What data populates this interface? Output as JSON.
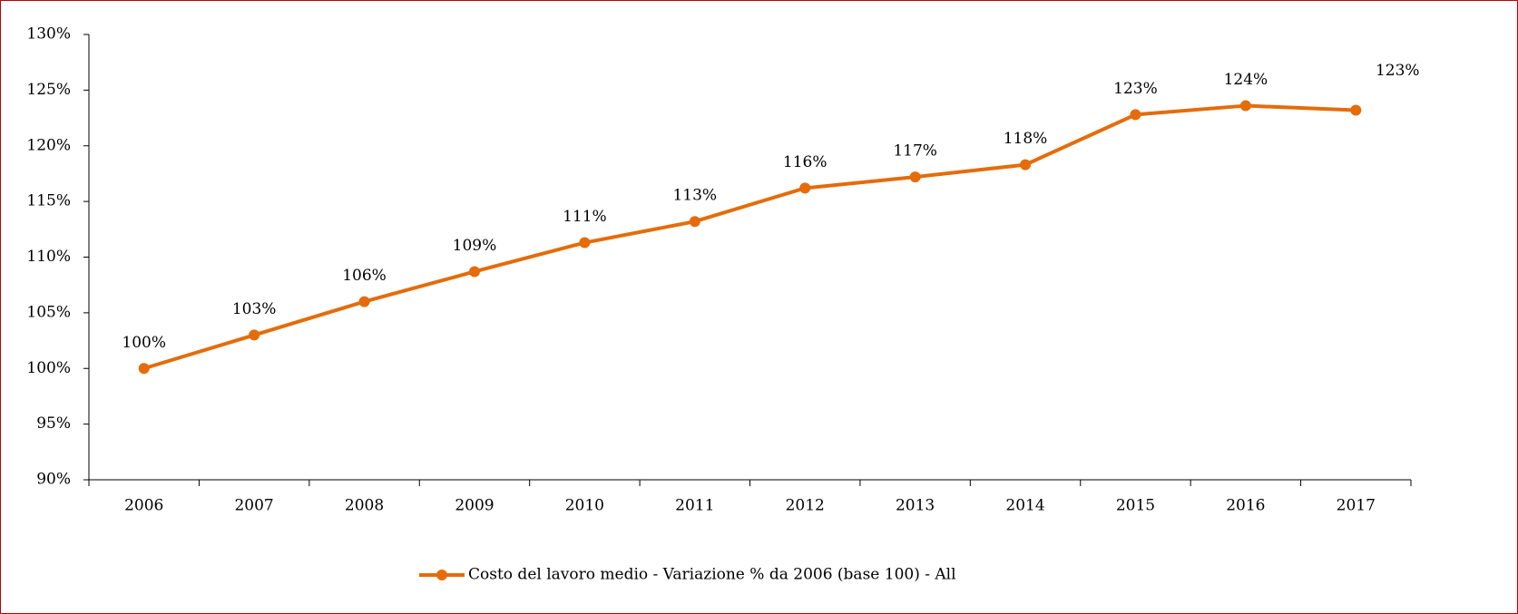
{
  "chart_data": {
    "type": "line",
    "categories": [
      "2006",
      "2007",
      "2008",
      "2009",
      "2010",
      "2011",
      "2012",
      "2013",
      "2014",
      "2015",
      "2016",
      "2017"
    ],
    "series": [
      {
        "name": "Costo del lavoro medio - Variazione % da 2006 (base 100) - All",
        "color": "#e46c0a",
        "values": [
          100,
          103.0,
          106.0,
          108.7,
          111.3,
          113.2,
          116.2,
          117.2,
          118.3,
          122.8,
          123.6,
          123.2
        ],
        "value_labels": [
          "100%",
          "103%",
          "106%",
          "109%",
          "111%",
          "113%",
          "116%",
          "117%",
          "118%",
          "123%",
          "124%",
          "123%"
        ]
      }
    ],
    "ylim": [
      90,
      130
    ],
    "yticks": [
      {
        "value": 90,
        "label": "90%"
      },
      {
        "value": 95,
        "label": "95%"
      },
      {
        "value": 100,
        "label": "100%"
      },
      {
        "value": 105,
        "label": "105%"
      },
      {
        "value": 110,
        "label": "110%"
      },
      {
        "value": 115,
        "label": "115%"
      },
      {
        "value": 120,
        "label": "120%"
      },
      {
        "value": 125,
        "label": "125%"
      },
      {
        "value": 130,
        "label": "130%"
      }
    ],
    "grid": false,
    "legend": "bottom"
  }
}
